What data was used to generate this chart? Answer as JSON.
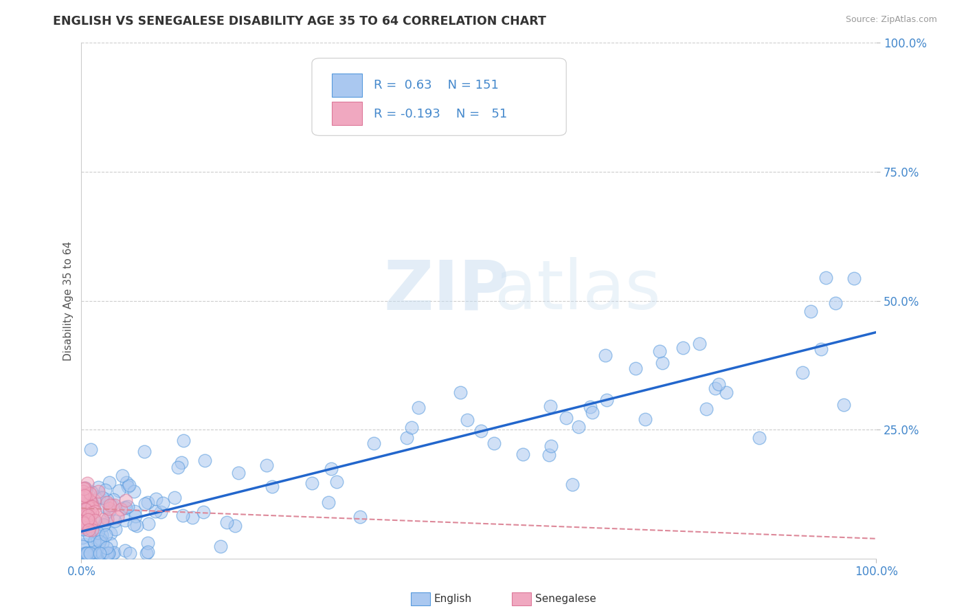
{
  "title": "ENGLISH VS SENEGALESE DISABILITY AGE 35 TO 64 CORRELATION CHART",
  "source_text": "Source: ZipAtlas.com",
  "ylabel": "Disability Age 35 to 64",
  "xlim": [
    0,
    1.0
  ],
  "ylim": [
    0,
    1.0
  ],
  "english_R": 0.63,
  "english_N": 151,
  "senegalese_R": -0.193,
  "senegalese_N": 51,
  "english_color": "#aac8f0",
  "senegalese_color": "#f0a8c0",
  "english_edge_color": "#5599dd",
  "senegalese_edge_color": "#dd7799",
  "english_line_color": "#2266cc",
  "senegalese_line_color": "#dd8899",
  "legend_label_english": "English",
  "legend_label_senegalese": "Senegalese",
  "watermark_zip": "ZIP",
  "watermark_atlas": "atlas",
  "background_color": "#ffffff",
  "grid_color": "#cccccc",
  "title_color": "#333333",
  "axis_label_color": "#4488cc",
  "r_value_color": "#4488cc"
}
